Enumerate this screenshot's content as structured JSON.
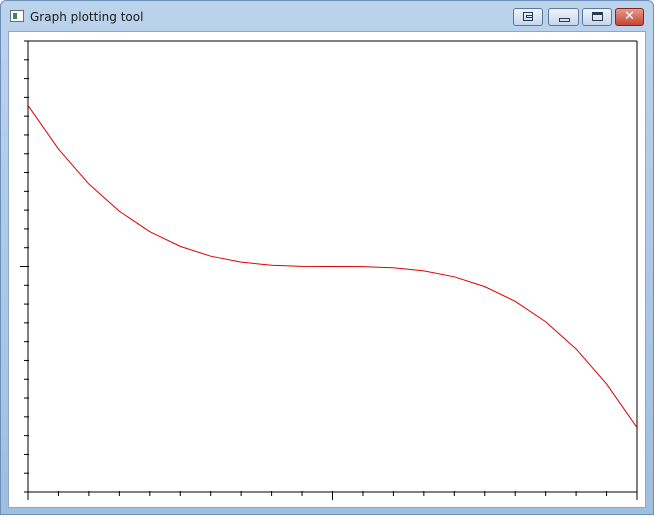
{
  "window": {
    "title": "Graph plotting tool"
  },
  "titlebar_buttons": {
    "close_glyph": "✕"
  },
  "colors": {
    "curve": "#dd0000",
    "axes": "#000000",
    "plot_background": "#ffffff"
  },
  "chart_data": {
    "type": "line",
    "title": "",
    "xlabel": "",
    "ylabel": "",
    "xlim": [
      -1,
      1
    ],
    "ylim": [
      -1.4,
      1.4
    ],
    "x_ticks": {
      "major": [
        -1,
        0,
        1
      ],
      "minor_count_between_majors": 10
    },
    "y_ticks": {
      "major": [
        0
      ],
      "minor_count_between_majors": 12
    },
    "grid": false,
    "series": [
      {
        "x": [
          -1,
          -0.9,
          -0.8,
          -0.7,
          -0.6,
          -0.5,
          -0.4,
          -0.3,
          -0.2,
          -0.1,
          0,
          0.1,
          0.2,
          0.3,
          0.4,
          0.5,
          0.6,
          0.7,
          0.8,
          0.9,
          1
        ],
        "y": [
          1.0,
          0.729,
          0.512,
          0.343,
          0.216,
          0.125,
          0.064,
          0.027,
          0.008,
          0.001,
          0.0,
          -0.001,
          -0.008,
          -0.027,
          -0.064,
          -0.125,
          -0.216,
          -0.343,
          -0.512,
          -0.729,
          -1.0
        ]
      }
    ]
  }
}
